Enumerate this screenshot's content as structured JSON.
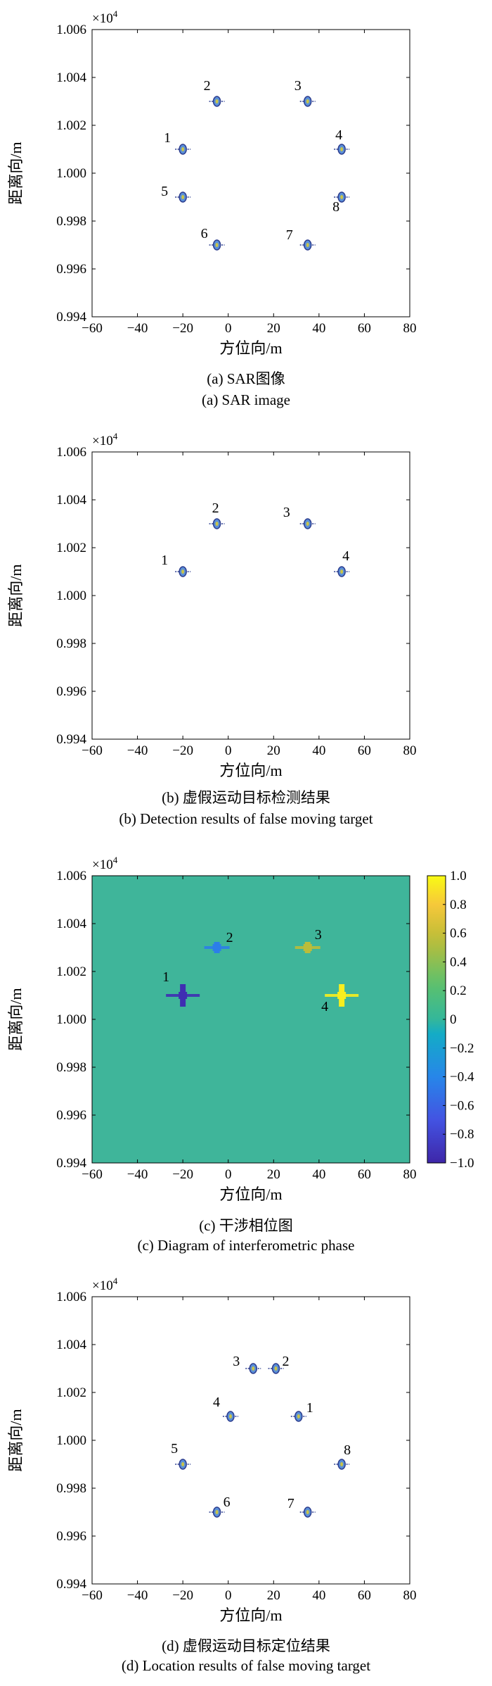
{
  "palette": {
    "marker_fill": "#5b8fd6",
    "marker_stroke": "#2c3d8f",
    "marker_core": "#c9c44a",
    "background_panel_c": "#3fb59a",
    "colormap_low": "#3e1f8a",
    "colormap_mid": "#34b79a",
    "colormap_high": "#f5e61e"
  },
  "chart_data": [
    {
      "type": "scatter",
      "xlabel": "方位向/m",
      "ylabel": "距离向/m",
      "y_exponent": "×10",
      "y_exponent_power": "4",
      "caption_cn": "(a) SAR图像",
      "caption_en": "(a) SAR image",
      "xlim": [
        -60,
        80
      ],
      "ylim": [
        0.994,
        1.006
      ],
      "x_ticks": [
        "−60",
        "−40",
        "−20",
        "0",
        "20",
        "40",
        "60",
        "80"
      ],
      "y_ticks": [
        "0.994",
        "0.996",
        "0.998",
        "1.000",
        "1.002",
        "1.004",
        "1.006"
      ],
      "points": [
        {
          "label": "1",
          "x": -20,
          "y": 1.001
        },
        {
          "label": "2",
          "x": -5,
          "y": 1.003
        },
        {
          "label": "3",
          "x": 35,
          "y": 1.003
        },
        {
          "label": "4",
          "x": 50,
          "y": 1.001
        },
        {
          "label": "5",
          "x": -20,
          "y": 0.999
        },
        {
          "label": "6",
          "x": -5,
          "y": 0.997
        },
        {
          "label": "7",
          "x": 35,
          "y": 0.997
        },
        {
          "label": "8",
          "x": 50,
          "y": 0.999
        }
      ]
    },
    {
      "type": "scatter",
      "xlabel": "方位向/m",
      "ylabel": "距离向/m",
      "y_exponent": "×10",
      "y_exponent_power": "4",
      "caption_cn": "(b) 虚假运动目标检测结果",
      "caption_en": "(b) Detection results of false moving target",
      "xlim": [
        -60,
        80
      ],
      "ylim": [
        0.994,
        1.006
      ],
      "x_ticks": [
        "−60",
        "−40",
        "−20",
        "0",
        "20",
        "40",
        "60",
        "80"
      ],
      "y_ticks": [
        "0.994",
        "0.996",
        "0.998",
        "1.000",
        "1.002",
        "1.004",
        "1.006"
      ],
      "points": [
        {
          "label": "1",
          "x": -20,
          "y": 1.001
        },
        {
          "label": "2",
          "x": -5,
          "y": 1.003
        },
        {
          "label": "3",
          "x": 35,
          "y": 1.003
        },
        {
          "label": "4",
          "x": 50,
          "y": 1.001
        }
      ]
    },
    {
      "type": "heatmap",
      "xlabel": "方位向/m",
      "ylabel": "距离向/m",
      "y_exponent": "×10",
      "y_exponent_power": "4",
      "caption_cn": "(c) 干涉相位图",
      "caption_en": "(c) Diagram of interferometric phase",
      "xlim": [
        -60,
        80
      ],
      "ylim": [
        0.994,
        1.006
      ],
      "x_ticks": [
        "−60",
        "−40",
        "−20",
        "0",
        "20",
        "40",
        "60",
        "80"
      ],
      "y_ticks": [
        "0.994",
        "0.996",
        "0.998",
        "1.000",
        "1.002",
        "1.004",
        "1.006"
      ],
      "background_value": 0.0,
      "colorbar_range": [
        -1.0,
        1.0
      ],
      "colorbar_ticks": [
        "1.0",
        "0.8",
        "0.6",
        "0.4",
        "0.2",
        "0",
        "−0.2",
        "−0.4",
        "−0.6",
        "−0.8",
        "−1.0"
      ],
      "points": [
        {
          "label": "1",
          "x": -20,
          "y": 1.001,
          "value": -0.95
        },
        {
          "label": "2",
          "x": -5,
          "y": 1.003,
          "value": -0.45
        },
        {
          "label": "3",
          "x": 35,
          "y": 1.003,
          "value": 0.55
        },
        {
          "label": "4",
          "x": 50,
          "y": 1.001,
          "value": 0.95
        }
      ]
    },
    {
      "type": "scatter",
      "xlabel": "方位向/m",
      "ylabel": "距离向/m",
      "y_exponent": "×10",
      "y_exponent_power": "4",
      "caption_cn": "(d) 虚假运动目标定位结果",
      "caption_en": "(d) Location results of false moving target",
      "xlim": [
        -60,
        80
      ],
      "ylim": [
        0.994,
        1.006
      ],
      "x_ticks": [
        "−60",
        "−40",
        "−20",
        "0",
        "20",
        "40",
        "60",
        "80"
      ],
      "y_ticks": [
        "0.994",
        "0.996",
        "0.998",
        "1.000",
        "1.002",
        "1.004",
        "1.006"
      ],
      "points": [
        {
          "label": "1",
          "x": 31,
          "y": 1.001
        },
        {
          "label": "2",
          "x": 21,
          "y": 1.003
        },
        {
          "label": "3",
          "x": 11,
          "y": 1.003
        },
        {
          "label": "4",
          "x": 1,
          "y": 1.001
        },
        {
          "label": "5",
          "x": -20,
          "y": 0.999
        },
        {
          "label": "6",
          "x": -5,
          "y": 0.997
        },
        {
          "label": "7",
          "x": 35,
          "y": 0.997
        },
        {
          "label": "8",
          "x": 50,
          "y": 0.999
        }
      ]
    }
  ]
}
